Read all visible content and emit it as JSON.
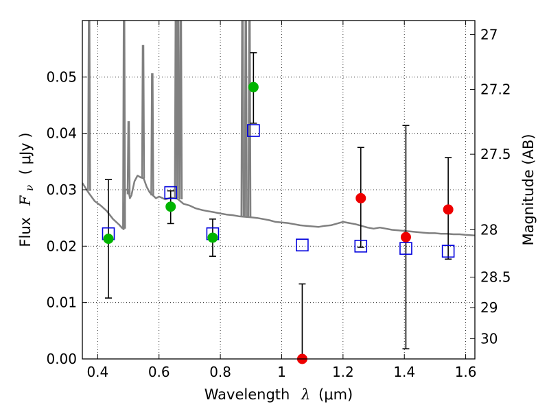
{
  "chart_data": {
    "type": "scatter",
    "xlabel": {
      "text": "Wavelength",
      "symbol": "λ",
      "unit": "(μm)"
    },
    "ylabel": {
      "text": "Flux",
      "symbol": "F",
      "subscript": "ν",
      "unit": "( μJy )"
    },
    "y2label": "Magnitude (AB)",
    "xlim": [
      0.35,
      1.63
    ],
    "ylim": [
      0.0,
      0.06
    ],
    "x_ticks": [
      0.4,
      0.6,
      0.8,
      1.0,
      1.2,
      1.4,
      1.6
    ],
    "x_tick_labels": [
      "0.4",
      "0.6",
      "0.8",
      "1",
      "1.2",
      "1.4",
      "1.6"
    ],
    "y_ticks": [
      0.0,
      0.01,
      0.02,
      0.03,
      0.04,
      0.05
    ],
    "y_tick_labels": [
      "0.00",
      "0.01",
      "0.02",
      "0.03",
      "0.04",
      "0.05"
    ],
    "y2_ticks": [
      {
        "label": "27",
        "flux": 0.0575
      },
      {
        "label": "27.2",
        "flux": 0.0478
      },
      {
        "label": "27.5",
        "flux": 0.0363
      },
      {
        "label": "28",
        "flux": 0.0229
      },
      {
        "label": "28.5",
        "flux": 0.0145
      },
      {
        "label": "29",
        "flux": 0.0091
      },
      {
        "label": "30",
        "flux": 0.0036
      }
    ],
    "grid": true,
    "colors": {
      "model": "#808080",
      "green": "#00b400",
      "red": "#ee0000",
      "squares": "#0000dd",
      "errorbar": "#000000"
    },
    "model_spectrum": [
      [
        0.35,
        0.0312
      ],
      [
        0.37,
        0.0295
      ],
      [
        0.39,
        0.028
      ],
      [
        0.41,
        0.0272
      ],
      [
        0.43,
        0.0262
      ],
      [
        0.45,
        0.0248
      ],
      [
        0.47,
        0.0238
      ],
      [
        0.48,
        0.0232
      ],
      [
        0.485,
        0.023
      ],
      [
        0.49,
        0.03
      ],
      [
        0.495,
        0.03
      ],
      [
        0.5,
        0.03
      ],
      [
        0.505,
        0.0285
      ],
      [
        0.51,
        0.029
      ],
      [
        0.52,
        0.0315
      ],
      [
        0.53,
        0.0325
      ],
      [
        0.54,
        0.0322
      ],
      [
        0.55,
        0.032
      ],
      [
        0.56,
        0.0305
      ],
      [
        0.57,
        0.0295
      ],
      [
        0.58,
        0.029
      ],
      [
        0.59,
        0.0285
      ],
      [
        0.6,
        0.0288
      ],
      [
        0.62,
        0.0283
      ],
      [
        0.64,
        0.0286
      ],
      [
        0.66,
        0.0284
      ],
      [
        0.68,
        0.0275
      ],
      [
        0.7,
        0.0272
      ],
      [
        0.72,
        0.0267
      ],
      [
        0.74,
        0.0264
      ],
      [
        0.76,
        0.0262
      ],
      [
        0.78,
        0.026
      ],
      [
        0.8,
        0.0258
      ],
      [
        0.82,
        0.0256
      ],
      [
        0.84,
        0.0255
      ],
      [
        0.86,
        0.0253
      ],
      [
        0.88,
        0.0252
      ],
      [
        0.9,
        0.0251
      ],
      [
        0.92,
        0.025
      ],
      [
        0.94,
        0.0248
      ],
      [
        0.96,
        0.0246
      ],
      [
        0.98,
        0.0243
      ],
      [
        1.0,
        0.0242
      ],
      [
        1.02,
        0.0241
      ],
      [
        1.04,
        0.0239
      ],
      [
        1.06,
        0.0237
      ],
      [
        1.08,
        0.0236
      ],
      [
        1.1,
        0.0235
      ],
      [
        1.12,
        0.0234
      ],
      [
        1.14,
        0.0236
      ],
      [
        1.16,
        0.0237
      ],
      [
        1.18,
        0.024
      ],
      [
        1.2,
        0.0243
      ],
      [
        1.22,
        0.0241
      ],
      [
        1.24,
        0.0239
      ],
      [
        1.26,
        0.0236
      ],
      [
        1.28,
        0.0233
      ],
      [
        1.3,
        0.0231
      ],
      [
        1.32,
        0.0233
      ],
      [
        1.34,
        0.0231
      ],
      [
        1.36,
        0.0229
      ],
      [
        1.38,
        0.0228
      ],
      [
        1.4,
        0.0227
      ],
      [
        1.42,
        0.0226
      ],
      [
        1.44,
        0.0225
      ],
      [
        1.46,
        0.0224
      ],
      [
        1.48,
        0.0223
      ],
      [
        1.5,
        0.0223
      ],
      [
        1.52,
        0.0222
      ],
      [
        1.54,
        0.0222
      ],
      [
        1.56,
        0.0221
      ],
      [
        1.58,
        0.0221
      ],
      [
        1.6,
        0.022
      ],
      [
        1.63,
        0.0219
      ]
    ],
    "model_lines": [
      {
        "x": 0.372,
        "top": 0.06,
        "base": 0.0298
      },
      {
        "x": 0.486,
        "top": 0.06,
        "base": 0.0231
      },
      {
        "x": 0.501,
        "top": 0.042,
        "base": 0.0292
      },
      {
        "x": 0.548,
        "top": 0.0555,
        "base": 0.032
      },
      {
        "x": 0.578,
        "top": 0.0505,
        "base": 0.029
      },
      {
        "x": 0.655,
        "top": 0.06,
        "base": 0.0285
      },
      {
        "x": 0.662,
        "top": 0.06,
        "base": 0.0285
      },
      {
        "x": 0.671,
        "top": 0.06,
        "base": 0.0283
      },
      {
        "x": 0.872,
        "top": 0.06,
        "base": 0.0253
      },
      {
        "x": 0.883,
        "top": 0.06,
        "base": 0.0252
      },
      {
        "x": 0.895,
        "top": 0.06,
        "base": 0.0251
      }
    ],
    "model_squares": [
      {
        "x": 0.435,
        "y": 0.0222
      },
      {
        "x": 0.638,
        "y": 0.0295
      },
      {
        "x": 0.775,
        "y": 0.0222
      },
      {
        "x": 0.908,
        "y": 0.0405
      },
      {
        "x": 1.067,
        "y": 0.0202
      },
      {
        "x": 1.258,
        "y": 0.02
      },
      {
        "x": 1.405,
        "y": 0.0196
      },
      {
        "x": 1.543,
        "y": 0.0191
      }
    ],
    "observed": [
      {
        "x": 0.435,
        "y": 0.0213,
        "ylo": 0.0108,
        "yhi": 0.0318,
        "color": "green"
      },
      {
        "x": 0.638,
        "y": 0.027,
        "ylo": 0.024,
        "yhi": 0.0298,
        "color": "green"
      },
      {
        "x": 0.775,
        "y": 0.0215,
        "ylo": 0.0182,
        "yhi": 0.0248,
        "color": "green"
      },
      {
        "x": 0.908,
        "y": 0.0482,
        "ylo": 0.0418,
        "yhi": 0.0543,
        "color": "green"
      },
      {
        "x": 1.067,
        "y": 0.0,
        "ylo": 0.0,
        "yhi": 0.0133,
        "color": "red"
      },
      {
        "x": 1.258,
        "y": 0.0285,
        "ylo": 0.0198,
        "yhi": 0.0375,
        "color": "red"
      },
      {
        "x": 1.405,
        "y": 0.0216,
        "ylo": 0.0018,
        "yhi": 0.0414,
        "color": "red"
      },
      {
        "x": 1.543,
        "y": 0.0265,
        "ylo": 0.0177,
        "yhi": 0.0357,
        "color": "red"
      }
    ]
  }
}
